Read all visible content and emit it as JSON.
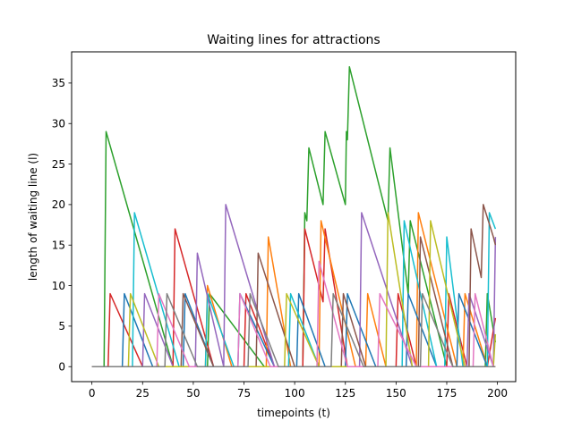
{
  "chart_data": {
    "type": "line",
    "title": "Waiting lines for attractions",
    "xlabel": "timepoints (t)",
    "ylabel": "length of waiting line (l)",
    "xlim": [
      -10,
      209
    ],
    "ylim": [
      -1.85,
      38.85
    ],
    "xticks": [
      0,
      25,
      50,
      75,
      100,
      125,
      150,
      175,
      200
    ],
    "yticks": [
      0,
      5,
      10,
      15,
      20,
      25,
      30,
      35
    ],
    "grid": false,
    "legend": "none",
    "series": [
      {
        "color": "#2ca02c",
        "x": [
          0,
          6,
          7,
          40,
          41,
          57,
          58,
          85,
          86,
          104,
          105,
          106,
          107,
          114,
          115,
          125,
          125.5,
          126,
          127,
          146,
          147,
          156,
          157,
          175,
          176,
          194,
          195,
          199
        ],
        "y": [
          0,
          0,
          29,
          0,
          0,
          0,
          9,
          0,
          0,
          0,
          19,
          18,
          27,
          20,
          29,
          20,
          29,
          28,
          37,
          18,
          27,
          9,
          18,
          0,
          0,
          0,
          9,
          3
        ]
      },
      {
        "color": "#d62728",
        "x": [
          0,
          8,
          9,
          25,
          40,
          41,
          60,
          75,
          76,
          90,
          104,
          105,
          114,
          115,
          126,
          150,
          151,
          160,
          175,
          176,
          185,
          195,
          199
        ],
        "y": [
          0,
          0,
          9,
          0,
          0,
          17,
          0,
          0,
          9,
          0,
          0,
          17,
          8,
          17,
          0,
          0,
          9,
          0,
          0,
          9,
          0,
          0,
          6
        ]
      },
      {
        "color": "#ff7f0e",
        "x": [
          0,
          56,
          57,
          69,
          70,
          80,
          86,
          87,
          98,
          112,
          113,
          130,
          135,
          136,
          145,
          160,
          161,
          180,
          183,
          184,
          195,
          199
        ],
        "y": [
          0,
          0,
          10,
          0,
          0,
          0,
          0,
          16,
          0,
          0,
          18,
          0,
          0,
          9,
          0,
          0,
          19,
          0,
          0,
          9,
          0,
          0
        ]
      },
      {
        "color": "#1f77b4",
        "x": [
          0,
          15,
          16,
          30,
          45,
          46,
          60,
          72,
          73,
          90,
          101,
          102,
          115,
          125,
          126,
          140,
          155,
          156,
          170,
          180,
          181,
          195
        ],
        "y": [
          0,
          0,
          9,
          0,
          0,
          9,
          0,
          0,
          9,
          0,
          0,
          9,
          0,
          0,
          9,
          0,
          0,
          9,
          0,
          0,
          9,
          0
        ]
      },
      {
        "color": "#17becf",
        "x": [
          0,
          20,
          21,
          43,
          56,
          57,
          70,
          97,
          98,
          112,
          153,
          154,
          170,
          174,
          175,
          183,
          195,
          196,
          199
        ],
        "y": [
          0,
          0,
          19,
          0,
          0,
          9,
          0,
          0,
          9,
          0,
          0,
          18,
          0,
          0,
          16,
          0,
          0,
          19,
          17
        ]
      },
      {
        "color": "#9467bd",
        "x": [
          0,
          25,
          26,
          40,
          51,
          52,
          65,
          66,
          90,
          132,
          133,
          158,
          185,
          186,
          198,
          199
        ],
        "y": [
          0,
          0,
          9,
          0,
          0,
          14,
          0,
          20,
          0,
          0,
          19,
          0,
          0,
          9,
          0,
          16
        ]
      },
      {
        "color": "#8c564b",
        "x": [
          0,
          44,
          45,
          60,
          81,
          82,
          100,
          123,
          124,
          135,
          161,
          162,
          178,
          186,
          187,
          192,
          193,
          198,
          199
        ],
        "y": [
          0,
          0,
          9,
          0,
          0,
          14,
          0,
          0,
          9,
          0,
          0,
          16,
          0,
          0,
          17,
          11,
          20,
          16,
          15
        ]
      },
      {
        "color": "#bcbd22",
        "x": [
          0,
          18,
          19,
          33,
          95,
          96,
          112,
          145,
          146,
          158,
          166,
          167,
          184,
          198,
          199
        ],
        "y": [
          0,
          0,
          9,
          0,
          0,
          9,
          0,
          0,
          19,
          0,
          0,
          18,
          0,
          0,
          4
        ]
      },
      {
        "color": "#e377c2",
        "x": [
          0,
          32,
          33,
          48,
          72,
          73,
          88,
          111,
          112,
          126,
          141,
          142,
          160,
          188,
          189,
          198
        ],
        "y": [
          0,
          0,
          9,
          0,
          0,
          9,
          0,
          0,
          13,
          0,
          0,
          9,
          0,
          0,
          9,
          0
        ]
      },
      {
        "color": "#7f7f7f",
        "x": [
          0,
          36,
          37,
          52,
          77,
          78,
          92,
          118,
          119,
          134,
          162,
          163,
          178,
          199
        ],
        "y": [
          0,
          0,
          9,
          0,
          0,
          9,
          0,
          0,
          9,
          0,
          0,
          9,
          0,
          0
        ]
      }
    ]
  }
}
